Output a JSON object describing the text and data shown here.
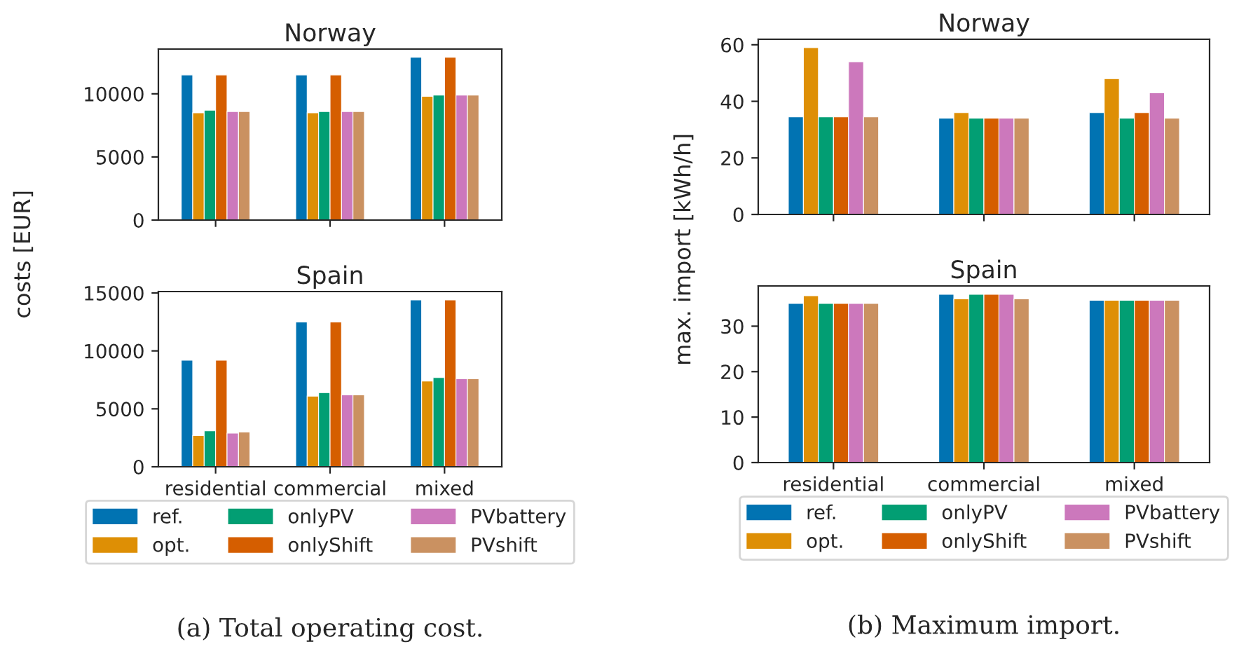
{
  "chart_data": [
    {
      "type": "bar",
      "title": "Norway",
      "ylabel": "costs [EUR]",
      "categories": [
        null,
        null,
        null
      ],
      "ylim": [
        0,
        13545
      ],
      "yticks": [
        0,
        5000,
        10000
      ],
      "legend": false,
      "grid": false,
      "series": [
        {
          "color": "#0173b2",
          "values": [
            11500,
            11500,
            12900
          ]
        },
        {
          "color": "#de8f05",
          "values": [
            8500,
            8500,
            9800
          ]
        },
        {
          "color": "#029e73",
          "values": [
            8700,
            8600,
            9900
          ]
        },
        {
          "color": "#d55e00",
          "values": [
            11500,
            11500,
            12900
          ]
        },
        {
          "color": "#cc78bc",
          "values": [
            8600,
            8600,
            9900
          ]
        },
        {
          "color": "#ca9161",
          "values": [
            8600,
            8600,
            9900
          ]
        }
      ]
    },
    {
      "type": "bar",
      "title": "Spain",
      "categories": [
        "residential",
        "commercial",
        "mixed"
      ],
      "ylim": [
        0,
        15120
      ],
      "yticks": [
        0,
        5000,
        10000,
        15000
      ],
      "legend": "bottom",
      "grid": false,
      "annotations": [
        "(a) Total operating cost."
      ],
      "series": [
        {
          "name": "ref.",
          "color": "#0173b2",
          "values": [
            9200,
            12500,
            14400
          ]
        },
        {
          "name": "opt.",
          "color": "#de8f05",
          "values": [
            2700,
            6100,
            7400
          ]
        },
        {
          "name": "onlyPV",
          "color": "#029e73",
          "values": [
            3100,
            6400,
            7700
          ]
        },
        {
          "name": "onlyShift",
          "color": "#d55e00",
          "values": [
            9200,
            12500,
            14400
          ]
        },
        {
          "name": "PVbattery",
          "color": "#cc78bc",
          "values": [
            2900,
            6200,
            7600
          ]
        },
        {
          "name": "PVshift",
          "color": "#ca9161",
          "values": [
            3000,
            6200,
            7600
          ]
        }
      ]
    },
    {
      "type": "bar",
      "title": "Norway",
      "ylabel": "max. import [kWh/h]",
      "categories": [
        null,
        null,
        null
      ],
      "ylim": [
        0,
        61.95
      ],
      "yticks": [
        0,
        20,
        40,
        60
      ],
      "legend": false,
      "grid": false,
      "series": [
        {
          "color": "#0173b2",
          "values": [
            34.5,
            34,
            36
          ]
        },
        {
          "color": "#de8f05",
          "values": [
            59,
            36,
            48
          ]
        },
        {
          "color": "#029e73",
          "values": [
            34.5,
            34,
            34
          ]
        },
        {
          "color": "#d55e00",
          "values": [
            34.5,
            34,
            36
          ]
        },
        {
          "color": "#cc78bc",
          "values": [
            54,
            34,
            43
          ]
        },
        {
          "color": "#ca9161",
          "values": [
            34.5,
            34,
            34
          ]
        }
      ]
    },
    {
      "type": "bar",
      "title": "Spain",
      "categories": [
        "residential",
        "commercial",
        "mixed"
      ],
      "ylim": [
        0,
        38.85
      ],
      "yticks": [
        0,
        10,
        20,
        30
      ],
      "legend": "bottom",
      "grid": false,
      "annotations": [
        "(b) Maximum import."
      ],
      "series": [
        {
          "name": "ref.",
          "color": "#0173b2",
          "values": [
            35,
            37,
            35.7
          ]
        },
        {
          "name": "opt.",
          "color": "#de8f05",
          "values": [
            36.7,
            36,
            35.7
          ]
        },
        {
          "name": "onlyPV",
          "color": "#029e73",
          "values": [
            35,
            37,
            35.7
          ]
        },
        {
          "name": "onlyShift",
          "color": "#d55e00",
          "values": [
            35,
            37,
            35.7
          ]
        },
        {
          "name": "PVbattery",
          "color": "#cc78bc",
          "values": [
            35,
            37,
            35.7
          ]
        },
        {
          "name": "PVshift",
          "color": "#ca9161",
          "values": [
            35,
            36,
            35.7
          ]
        }
      ]
    }
  ]
}
